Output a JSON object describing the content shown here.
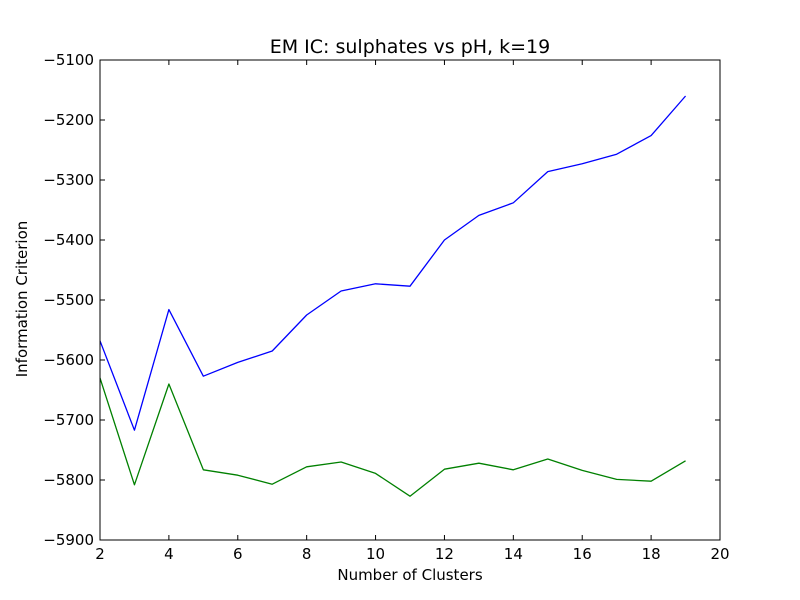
{
  "chart_data": {
    "type": "line",
    "title": "EM IC: sulphates vs pH, k=19",
    "xlabel": "Number of Clusters",
    "ylabel": "Information Criterion",
    "xlim": [
      2,
      20
    ],
    "ylim": [
      -5900,
      -5100
    ],
    "x_ticks": [
      "2",
      "4",
      "6",
      "8",
      "10",
      "12",
      "14",
      "16",
      "18",
      "20"
    ],
    "y_ticks": [
      "−5100",
      "−5200",
      "−5300",
      "−5400",
      "−5500",
      "−5600",
      "−5700",
      "−5800",
      "−5900"
    ],
    "grid": false,
    "x": [
      2,
      3,
      4,
      5,
      6,
      7,
      8,
      9,
      10,
      11,
      12,
      13,
      14,
      15,
      16,
      17,
      18,
      19
    ],
    "series": [
      {
        "color": "#0000ff",
        "values": [
          -5568,
          -5717,
          -5516,
          -5627,
          -5604,
          -5585,
          -5525,
          -5485,
          -5473,
          -5477,
          -5400,
          -5359,
          -5338,
          -5286,
          -5273,
          -5257,
          -5226,
          -5160
        ]
      },
      {
        "color": "#008000",
        "values": [
          -5630,
          -5808,
          -5640,
          -5783,
          -5792,
          -5807,
          -5778,
          -5770,
          -5789,
          -5827,
          -5782,
          -5772,
          -5783,
          -5765,
          -5784,
          -5799,
          -5802,
          -5768
        ]
      }
    ]
  }
}
